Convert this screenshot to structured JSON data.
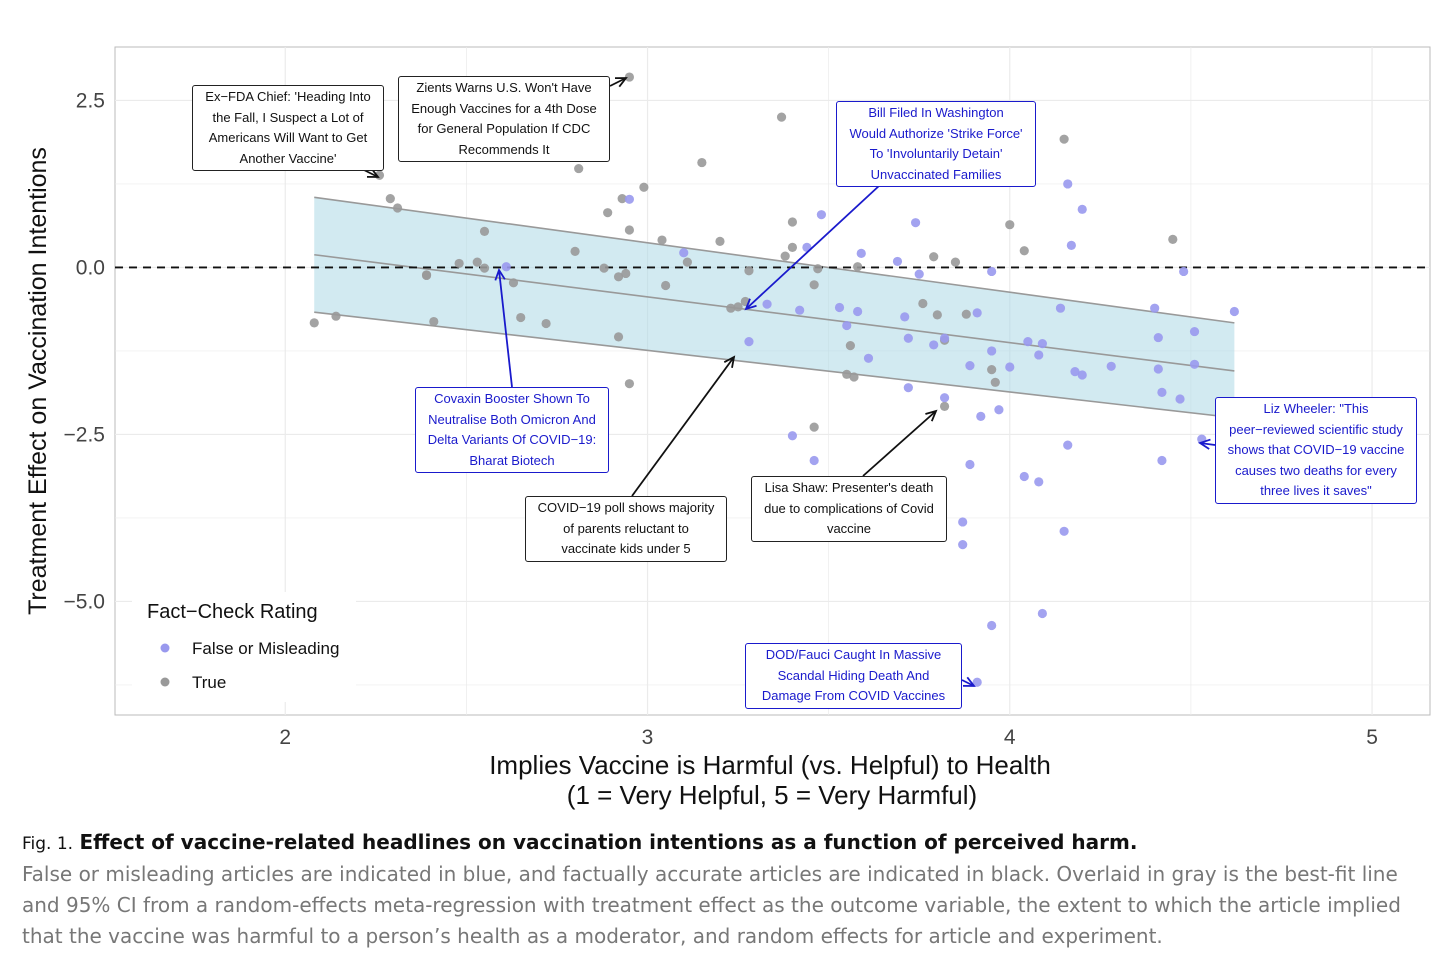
{
  "chart_data": {
    "type": "scatter",
    "xlabel_line1": "Implies Vaccine is Harmful (vs. Helpful) to Health",
    "xlabel_line2": "(1 = Very Helpful, 5 = Very Harmful)",
    "ylabel": "Treatment Effect on Vaccination Intentions",
    "xlim": [
      1.53,
      5.16
    ],
    "ylim": [
      -6.7,
      3.3
    ],
    "x_ticks": [
      {
        "v": 2,
        "label": "2"
      },
      {
        "v": 3,
        "label": "3"
      },
      {
        "v": 4,
        "label": "4"
      },
      {
        "v": 5,
        "label": "5"
      }
    ],
    "y_ticks": [
      {
        "v": 2.5,
        "label": "2.5"
      },
      {
        "v": 0,
        "label": "0.0"
      },
      {
        "v": -2.5,
        "label": "−2.5"
      },
      {
        "v": -5,
        "label": "−5.0"
      }
    ],
    "grid": true,
    "reference_line_y": 0,
    "fit": {
      "x_start": 2.08,
      "x_end": 4.62,
      "y_start": 0.19,
      "y_end": -1.55,
      "ci_upper_start": 1.05,
      "ci_upper_end": -0.83,
      "ci_lower_start": -0.67,
      "ci_lower_end": -2.25
    },
    "colors": {
      "false_or_misleading": "#9999ee",
      "true": "#999999",
      "ci_band": "#add8e6",
      "fit_line": "#999999",
      "annotation_blue": "#1a1acc",
      "annotation_black": "#111111"
    },
    "legend": {
      "title": "Fact−Check Rating",
      "placement": "bottom-left",
      "entries": [
        {
          "label": "False or Misleading",
          "color": "#9999ee"
        },
        {
          "label": "True",
          "color": "#999999"
        }
      ]
    },
    "series": [
      {
        "name": "True",
        "color": "#999999",
        "points": [
          [
            2.08,
            -0.83
          ],
          [
            2.14,
            -0.73
          ],
          [
            2.26,
            1.38
          ],
          [
            2.29,
            1.03
          ],
          [
            2.31,
            0.89
          ],
          [
            2.39,
            -0.11
          ],
          [
            2.39,
            -0.12
          ],
          [
            2.41,
            -0.81
          ],
          [
            2.48,
            0.06
          ],
          [
            2.53,
            0.08
          ],
          [
            2.55,
            0.54
          ],
          [
            2.55,
            -0.01
          ],
          [
            2.63,
            -0.23
          ],
          [
            2.65,
            -0.75
          ],
          [
            2.72,
            -0.84
          ],
          [
            2.8,
            0.24
          ],
          [
            2.81,
            1.48
          ],
          [
            2.88,
            -0.01
          ],
          [
            2.89,
            0.82
          ],
          [
            2.92,
            -0.14
          ],
          [
            2.92,
            -1.04
          ],
          [
            2.93,
            1.03
          ],
          [
            2.94,
            -0.09
          ],
          [
            2.95,
            2.85
          ],
          [
            2.95,
            0.56
          ],
          [
            2.95,
            -1.74
          ],
          [
            2.99,
            1.2
          ],
          [
            3.04,
            0.41
          ],
          [
            3.05,
            -0.27
          ],
          [
            3.11,
            0.08
          ],
          [
            3.15,
            1.57
          ],
          [
            3.2,
            0.39
          ],
          [
            3.23,
            -0.61
          ],
          [
            3.25,
            -0.59
          ],
          [
            3.27,
            -0.51
          ],
          [
            3.28,
            -0.05
          ],
          [
            3.37,
            2.25
          ],
          [
            3.38,
            0.17
          ],
          [
            3.4,
            0.3
          ],
          [
            3.4,
            0.68
          ],
          [
            3.46,
            -0.26
          ],
          [
            3.46,
            -2.39
          ],
          [
            3.47,
            -0.02
          ],
          [
            3.55,
            -1.6
          ],
          [
            3.56,
            -1.17
          ],
          [
            3.57,
            -1.64
          ],
          [
            3.58,
            0.01
          ],
          [
            3.76,
            -0.54
          ],
          [
            3.79,
            0.16
          ],
          [
            3.8,
            -0.71
          ],
          [
            3.82,
            -2.08
          ],
          [
            3.82,
            -1.09
          ],
          [
            3.85,
            0.08
          ],
          [
            3.88,
            -0.7
          ],
          [
            3.95,
            -1.53
          ],
          [
            3.96,
            -1.72
          ],
          [
            4.0,
            0.64
          ],
          [
            4.04,
            0.25
          ],
          [
            4.15,
            1.92
          ],
          [
            4.45,
            0.42
          ]
        ]
      },
      {
        "name": "False or Misleading",
        "color": "#9999ee",
        "points": [
          [
            2.61,
            0.01
          ],
          [
            2.95,
            1.02
          ],
          [
            3.1,
            0.22
          ],
          [
            3.28,
            -1.11
          ],
          [
            3.33,
            -0.55
          ],
          [
            3.4,
            -2.52
          ],
          [
            3.42,
            -0.64
          ],
          [
            3.44,
            0.3
          ],
          [
            3.46,
            -2.89
          ],
          [
            3.48,
            0.79
          ],
          [
            3.53,
            -0.6
          ],
          [
            3.55,
            -0.87
          ],
          [
            3.58,
            -0.66
          ],
          [
            3.59,
            0.21
          ],
          [
            3.61,
            -1.36
          ],
          [
            3.69,
            0.09
          ],
          [
            3.71,
            -0.74
          ],
          [
            3.72,
            -1.8
          ],
          [
            3.72,
            -1.06
          ],
          [
            3.74,
            0.67
          ],
          [
            3.75,
            -0.1
          ],
          [
            3.79,
            -1.16
          ],
          [
            3.82,
            -1.06
          ],
          [
            3.82,
            -1.95
          ],
          [
            3.87,
            -3.81
          ],
          [
            3.87,
            -4.15
          ],
          [
            3.89,
            -2.95
          ],
          [
            3.89,
            -1.47
          ],
          [
            3.91,
            -6.21
          ],
          [
            3.91,
            -0.68
          ],
          [
            3.92,
            -2.23
          ],
          [
            3.95,
            -0.06
          ],
          [
            3.95,
            -1.25
          ],
          [
            3.95,
            -5.36
          ],
          [
            3.97,
            -2.13
          ],
          [
            4.0,
            -1.49
          ],
          [
            4.04,
            -3.13
          ],
          [
            4.05,
            -1.11
          ],
          [
            4.08,
            -3.21
          ],
          [
            4.08,
            -1.31
          ],
          [
            4.09,
            -1.14
          ],
          [
            4.09,
            -5.18
          ],
          [
            4.14,
            -0.61
          ],
          [
            4.15,
            -3.95
          ],
          [
            4.16,
            -2.66
          ],
          [
            4.16,
            1.25
          ],
          [
            4.17,
            0.33
          ],
          [
            4.18,
            -1.56
          ],
          [
            4.2,
            -1.61
          ],
          [
            4.2,
            0.87
          ],
          [
            4.28,
            -1.48
          ],
          [
            4.4,
            -0.61
          ],
          [
            4.41,
            -1.05
          ],
          [
            4.41,
            -1.52
          ],
          [
            4.42,
            -1.87
          ],
          [
            4.42,
            -2.89
          ],
          [
            4.47,
            -1.97
          ],
          [
            4.48,
            -0.06
          ],
          [
            4.51,
            -0.96
          ],
          [
            4.51,
            -1.45
          ],
          [
            4.53,
            -2.57
          ],
          [
            4.62,
            -0.66
          ]
        ]
      }
    ],
    "annotations": [
      {
        "id": "ex-fda",
        "color": "black",
        "lines": [
          "Ex−FDA Chief: 'Heading Into",
          "the Fall, I Suspect a Lot of",
          "Americans Will Want to Get",
          "Another Vaccine'"
        ]
      },
      {
        "id": "zients",
        "color": "black",
        "lines": [
          "Zients Warns U.S. Won't Have",
          "Enough Vaccines for a 4th Dose",
          "for General Population If CDC",
          "Recommends It"
        ]
      },
      {
        "id": "bill-filed",
        "color": "blue",
        "lines": [
          "Bill Filed In Washington",
          "Would Authorize 'Strike Force'",
          "To 'Involuntarily Detain'",
          "Unvaccinated Families"
        ]
      },
      {
        "id": "covaxin",
        "color": "blue",
        "lines": [
          "Covaxin Booster Shown To",
          "Neutralise Both Omicron And",
          "Delta Variants Of COVID−19:",
          "Bharat Biotech"
        ]
      },
      {
        "id": "covid-poll",
        "color": "black",
        "lines": [
          "COVID−19 poll shows majority",
          "of parents reluctant to",
          "vaccinate kids under 5"
        ]
      },
      {
        "id": "lisa-shaw",
        "color": "black",
        "lines": [
          "Lisa Shaw: Presenter's death",
          "due to complications of Covid",
          "vaccine"
        ]
      },
      {
        "id": "liz-wheeler",
        "color": "blue",
        "lines": [
          "Liz Wheeler: \"This",
          "peer−reviewed scientific study",
          "shows that COVID−19 vaccine",
          "causes two deaths for every",
          "three lives it saves\""
        ]
      },
      {
        "id": "dod-fauci",
        "color": "blue",
        "lines": [
          "DOD/Fauci Caught In Massive",
          "Scandal Hiding Death And",
          "Damage From COVID Vaccines"
        ]
      }
    ]
  },
  "caption": {
    "label": "Fig. 1.",
    "title": "Effect of vaccine-related headlines on vaccination intentions as a function of perceived harm.",
    "body": "False or misleading articles are indicated in blue, and factually accurate articles are indicated in black. Overlaid in gray is the best-fit line and 95% CI from a random-effects meta-regression with treatment effect as the outcome variable, the extent to which the article implied that the vaccine was harmful to a person’s health as a moderator, and random effects for article and experiment."
  }
}
